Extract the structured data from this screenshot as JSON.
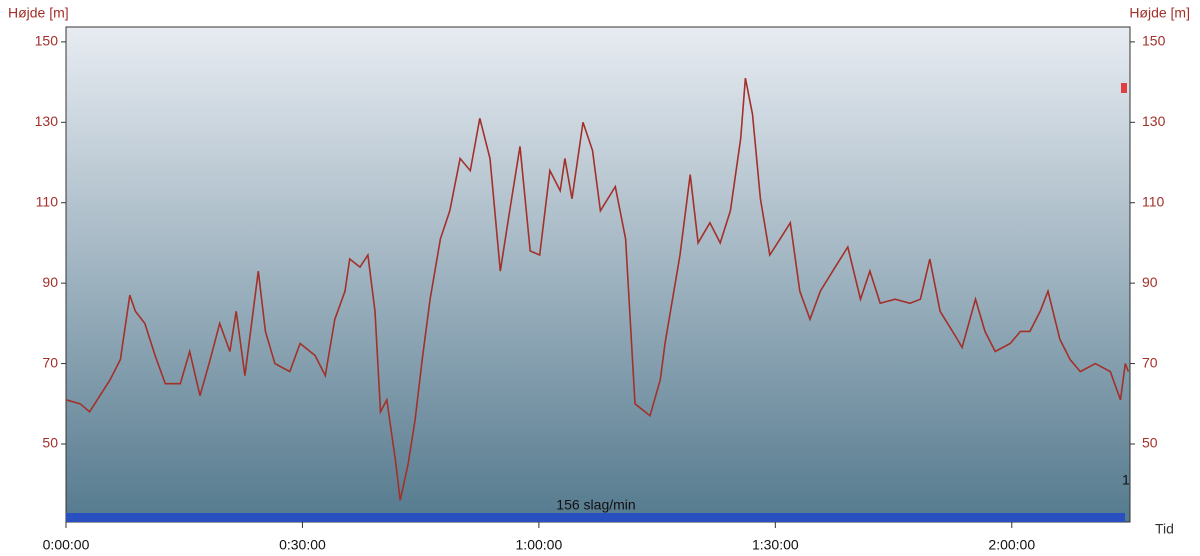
{
  "chart_data": {
    "type": "line",
    "y_label": "Højde [m]",
    "y2_label": "Højde [m]",
    "x_label": "Tid",
    "annotation": "156 slag/min",
    "corner_label": "1",
    "color": "#a3302a",
    "xlim": [
      0,
      135
    ],
    "xticks": [
      {
        "value": 0,
        "label": "0:00:00"
      },
      {
        "value": 30,
        "label": "0:30:00"
      },
      {
        "value": 60,
        "label": "1:00:00"
      },
      {
        "value": 90,
        "label": "1:30:00"
      },
      {
        "value": 120,
        "label": "2:00:00"
      }
    ],
    "ylim": [
      30.6,
      153.7
    ],
    "yticks": [
      50,
      70,
      90,
      110,
      130,
      150
    ],
    "y2lim": [
      30.6,
      153.7
    ],
    "y2ticks": [
      50,
      70,
      90,
      110,
      130,
      150
    ],
    "x": [
      0,
      1.8,
      3,
      4.3,
      5.6,
      6.9,
      8.1,
      8.8,
      10,
      11.3,
      12.6,
      14.5,
      15.7,
      17,
      18.3,
      19.5,
      20.8,
      21.6,
      22.7,
      24.4,
      25.3,
      26.5,
      28.4,
      29.7,
      31.6,
      32.9,
      34.1,
      35.4,
      36,
      37.3,
      38.3,
      39.2,
      39.9,
      40.7,
      41.8,
      42.4,
      43.4,
      44.3,
      45.2,
      46.2,
      47.5,
      48.7,
      50,
      51.3,
      52.5,
      53.8,
      55.1,
      56.3,
      57.6,
      58.9,
      60.1,
      61.4,
      62.7,
      63.3,
      64.2,
      65.6,
      66.8,
      67.8,
      69.7,
      71,
      72.2,
      74.1,
      75.4,
      76,
      77.9,
      79.2,
      80.2,
      81.7,
      83,
      84.3,
      85.6,
      86.2,
      87.1,
      88.1,
      89.3,
      90.6,
      91.9,
      93.1,
      94.4,
      95.7,
      97.6,
      99.2,
      100.8,
      102,
      103.3,
      105.2,
      107.1,
      108.4,
      109.6,
      110.9,
      112.8,
      113.7,
      115.4,
      116.6,
      117.9,
      119.8,
      121.1,
      122.3,
      123.6,
      124.6,
      126.1,
      127.4,
      128.7,
      130.6,
      132.5,
      133.8,
      134.4,
      134.8
    ],
    "values": [
      61,
      60,
      58,
      62,
      66,
      71,
      87,
      83,
      80,
      72,
      65,
      65,
      73,
      62,
      71,
      80,
      73,
      83,
      67,
      93,
      78,
      70,
      68,
      75,
      72,
      67,
      81,
      88,
      96,
      94,
      97,
      83,
      58,
      61,
      46,
      36,
      45,
      56,
      71,
      86,
      101,
      108,
      121,
      118,
      131,
      121,
      93,
      108,
      124,
      98,
      97,
      118,
      113,
      121,
      111,
      130,
      123,
      108,
      114,
      101,
      60,
      57,
      66,
      75,
      97,
      117,
      100,
      105,
      100,
      108,
      126,
      141,
      132,
      111,
      97,
      101,
      105,
      88,
      81,
      88,
      94,
      99,
      86,
      93,
      85,
      86,
      85,
      86,
      96,
      83,
      77,
      74,
      86,
      78,
      73,
      75,
      78,
      78,
      83,
      88,
      76,
      71,
      68,
      70,
      68,
      61,
      70,
      68
    ]
  }
}
